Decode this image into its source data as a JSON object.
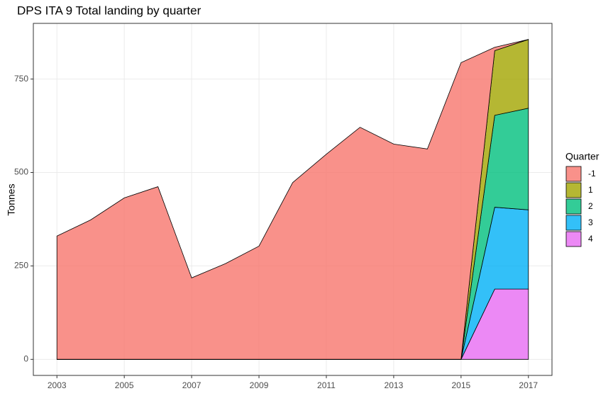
{
  "chart_data": {
    "type": "stacked-area",
    "title": "DPS ITA 9 Total landing by quarter",
    "y_label": "Tonnes",
    "legend_title": "Quarter",
    "legend_position": "right",
    "grid": true,
    "x": [
      2003,
      2004,
      2005,
      2006,
      2007,
      2008,
      2009,
      2010,
      2011,
      2012,
      2013,
      2014,
      2015,
      2016,
      2017
    ],
    "series": [
      {
        "name": "-1",
        "color": "#F8766D",
        "values": [
          330,
          373,
          432,
          462,
          218,
          256,
          303,
          473,
          549,
          621,
          576,
          563,
          794,
          9,
          0
        ]
      },
      {
        "name": "1",
        "color": "#A3A500",
        "values": [
          0,
          0,
          0,
          0,
          0,
          0,
          0,
          0,
          0,
          0,
          0,
          0,
          0,
          173,
          184
        ]
      },
      {
        "name": "2",
        "color": "#00BF7D",
        "values": [
          0,
          0,
          0,
          0,
          0,
          0,
          0,
          0,
          0,
          0,
          0,
          0,
          0,
          246,
          272
        ]
      },
      {
        "name": "3",
        "color": "#00B0F6",
        "values": [
          0,
          0,
          0,
          0,
          0,
          0,
          0,
          0,
          0,
          0,
          0,
          0,
          0,
          219,
          212
        ]
      },
      {
        "name": "4",
        "color": "#E76BF3",
        "values": [
          0,
          0,
          0,
          0,
          0,
          0,
          0,
          0,
          0,
          0,
          0,
          0,
          0,
          188,
          188
        ]
      }
    ],
    "xlim": [
      2002.3,
      2017.7
    ],
    "xticks": [
      2003,
      2005,
      2007,
      2009,
      2011,
      2013,
      2015,
      2017
    ],
    "ylim": [
      -43,
      899
    ],
    "yticks": [
      0,
      250,
      500,
      750
    ]
  }
}
